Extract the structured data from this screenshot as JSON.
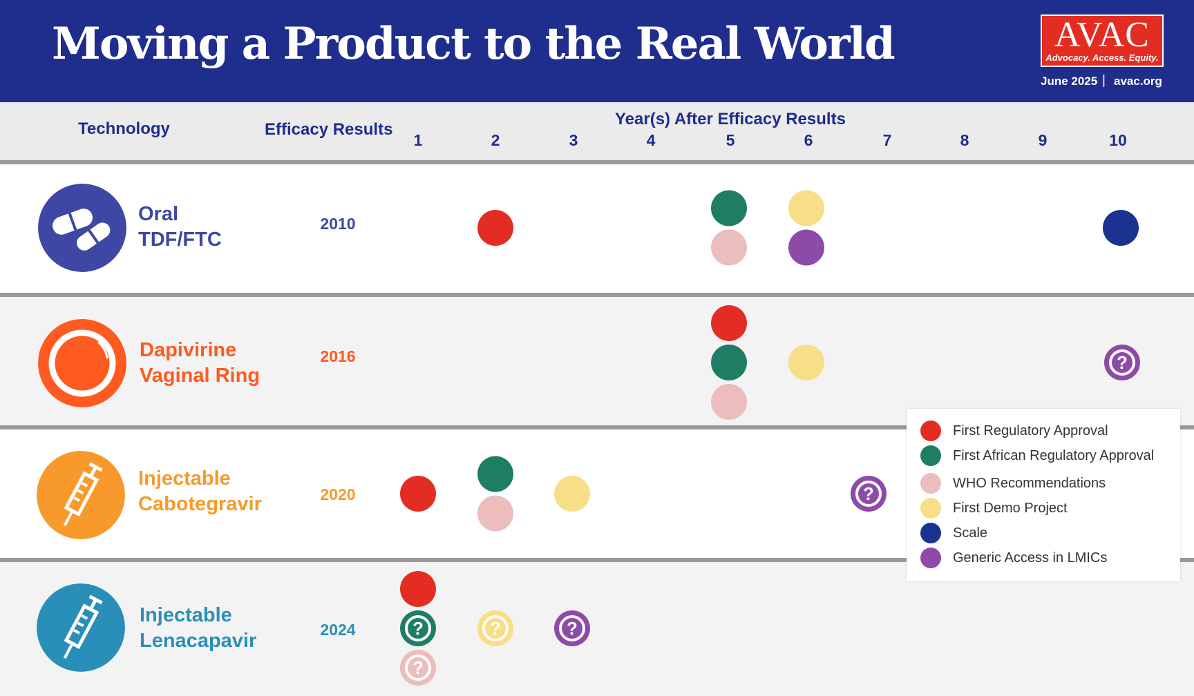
{
  "header": {
    "title": "Moving a Product to the Real World",
    "logo_name": "AVAC",
    "logo_tagline": "Advocacy. Access. Equity.",
    "date": "June 2025",
    "separator": "|",
    "site": "avac.org",
    "background_color": "#1f2d8c"
  },
  "columns": {
    "technology": "Technology",
    "efficacy": "Efficacy Results",
    "years_title": "Year(s) After Efficacy Results",
    "years": [
      "1",
      "2",
      "3",
      "4",
      "5",
      "6",
      "7",
      "8",
      "9",
      "10"
    ]
  },
  "rows": [
    {
      "name_line1": "Oral",
      "name_line2": "TDF/FTC",
      "efficacy_year": "2010",
      "color": "#3e48a4",
      "icon": "pills-icon"
    },
    {
      "name_line1": "Dapivirine",
      "name_line2": "Vaginal Ring",
      "efficacy_year": "2016",
      "color": "#ff5a1f",
      "icon": "ring-icon"
    },
    {
      "name_line1": "Injectable",
      "name_line2": "Cabotegravir",
      "efficacy_year": "2020",
      "color": "#f79a2b",
      "icon": "syringe-icon"
    },
    {
      "name_line1": "Injectable",
      "name_line2": "Lenacapavir",
      "efficacy_year": "2024",
      "color": "#2a8fb8",
      "icon": "syringe-icon"
    }
  ],
  "legend": [
    {
      "label": "First Regulatory Approval",
      "color": "#e32d22"
    },
    {
      "label": "First African Regulatory Approval",
      "color": "#1f7d63"
    },
    {
      "label": "WHO Recommendations",
      "color": "#ebbdbc"
    },
    {
      "label": "First Demo Project",
      "color": "#f8de86"
    },
    {
      "label": "Scale",
      "color": "#1b3290"
    },
    {
      "label": "Generic Access in LMICs",
      "color": "#8e4aa8"
    }
  ],
  "chart_data": {
    "type": "scatter",
    "title": "Moving a Product to the Real World",
    "xlabel": "Year(s) After Efficacy Results",
    "ylabel": "Technology",
    "x_categories": [
      1,
      2,
      3,
      4,
      5,
      6,
      7,
      8,
      9,
      10
    ],
    "y_categories": [
      "Oral TDF/FTC",
      "Dapivirine Vaginal Ring",
      "Injectable Cabotegravir",
      "Injectable Lenacapavir"
    ],
    "legend_position": "right",
    "milestones": [
      {
        "technology": "Oral TDF/FTC",
        "year": 2,
        "milestone": "First Regulatory Approval",
        "uncertain": false
      },
      {
        "technology": "Oral TDF/FTC",
        "year": 5,
        "milestone": "First African Regulatory Approval",
        "uncertain": false
      },
      {
        "technology": "Oral TDF/FTC",
        "year": 5,
        "milestone": "WHO Recommendations",
        "uncertain": false
      },
      {
        "technology": "Oral TDF/FTC",
        "year": 6,
        "milestone": "First Demo Project",
        "uncertain": false
      },
      {
        "technology": "Oral TDF/FTC",
        "year": 6,
        "milestone": "Generic Access in LMICs",
        "uncertain": false
      },
      {
        "technology": "Oral TDF/FTC",
        "year": 10,
        "milestone": "Scale",
        "uncertain": false
      },
      {
        "technology": "Dapivirine Vaginal Ring",
        "year": 5,
        "milestone": "First Regulatory Approval",
        "uncertain": false
      },
      {
        "technology": "Dapivirine Vaginal Ring",
        "year": 5,
        "milestone": "First African Regulatory Approval",
        "uncertain": false
      },
      {
        "technology": "Dapivirine Vaginal Ring",
        "year": 5,
        "milestone": "WHO Recommendations",
        "uncertain": false
      },
      {
        "technology": "Dapivirine Vaginal Ring",
        "year": 6,
        "milestone": "First Demo Project",
        "uncertain": false
      },
      {
        "technology": "Dapivirine Vaginal Ring",
        "year": 10,
        "milestone": "Generic Access in LMICs",
        "uncertain": true
      },
      {
        "technology": "Injectable Cabotegravir",
        "year": 1,
        "milestone": "First Regulatory Approval",
        "uncertain": false
      },
      {
        "technology": "Injectable Cabotegravir",
        "year": 2,
        "milestone": "First African Regulatory Approval",
        "uncertain": false
      },
      {
        "technology": "Injectable Cabotegravir",
        "year": 2,
        "milestone": "WHO Recommendations",
        "uncertain": false
      },
      {
        "technology": "Injectable Cabotegravir",
        "year": 3,
        "milestone": "First Demo Project",
        "uncertain": false
      },
      {
        "technology": "Injectable Cabotegravir",
        "year": 7,
        "milestone": "Generic Access in LMICs",
        "uncertain": true
      },
      {
        "technology": "Injectable Lenacapavir",
        "year": 1,
        "milestone": "First Regulatory Approval",
        "uncertain": false
      },
      {
        "technology": "Injectable Lenacapavir",
        "year": 1,
        "milestone": "First African Regulatory Approval",
        "uncertain": true
      },
      {
        "technology": "Injectable Lenacapavir",
        "year": 1,
        "milestone": "WHO Recommendations",
        "uncertain": true
      },
      {
        "technology": "Injectable Lenacapavir",
        "year": 2,
        "milestone": "First Demo Project",
        "uncertain": true
      },
      {
        "technology": "Injectable Lenacapavir",
        "year": 3,
        "milestone": "Generic Access in LMICs",
        "uncertain": true
      }
    ]
  }
}
